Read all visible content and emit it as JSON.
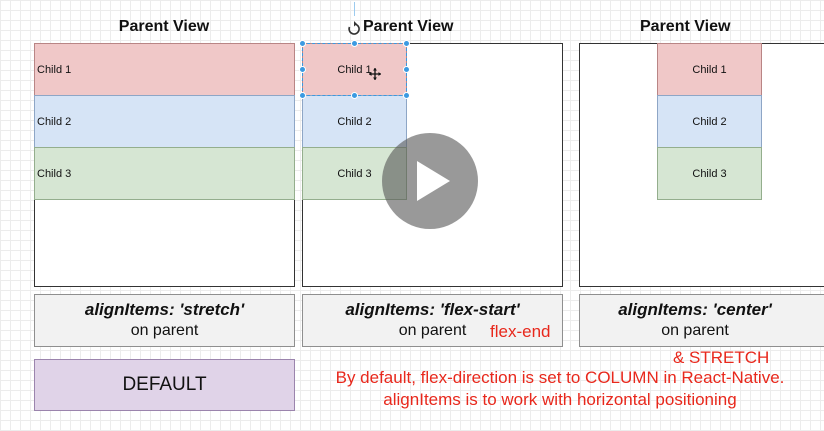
{
  "panels": [
    {
      "title": "Parent View",
      "children": [
        "Child 1",
        "Child 2",
        "Child 3"
      ],
      "caption_main": "alignItems: 'stretch'",
      "caption_sub": "on parent"
    },
    {
      "title": "Parent View",
      "children": [
        "Child 1",
        "Child 2",
        "Child 3"
      ],
      "caption_main": "alignItems: 'flex-start'",
      "caption_sub": "on parent"
    },
    {
      "title": "Parent View",
      "children": [
        "Child 1",
        "Child 2",
        "Child 3"
      ],
      "caption_main": "alignItems: 'center'",
      "caption_sub": "on parent"
    }
  ],
  "annotations": {
    "flex_end": "flex-end",
    "and_stretch": "& STRETCH",
    "note_line1": "By default, flex-direction is set to COLUMN in React-Native.",
    "note_line2": "alignItems is to work with horizontal positioning"
  },
  "default_box": {
    "label": "DEFAULT"
  },
  "colors": {
    "child1": "#f0c8c8",
    "child2": "#d6e4f6",
    "child3": "#d6e6d3",
    "default_box": "#e0d3e8",
    "annotation": "#e8281c",
    "selection": "#3b9ae1"
  },
  "icons": {
    "rotate": "rotate-icon",
    "move_cursor": "move-cursor-icon",
    "play": "play-icon"
  }
}
